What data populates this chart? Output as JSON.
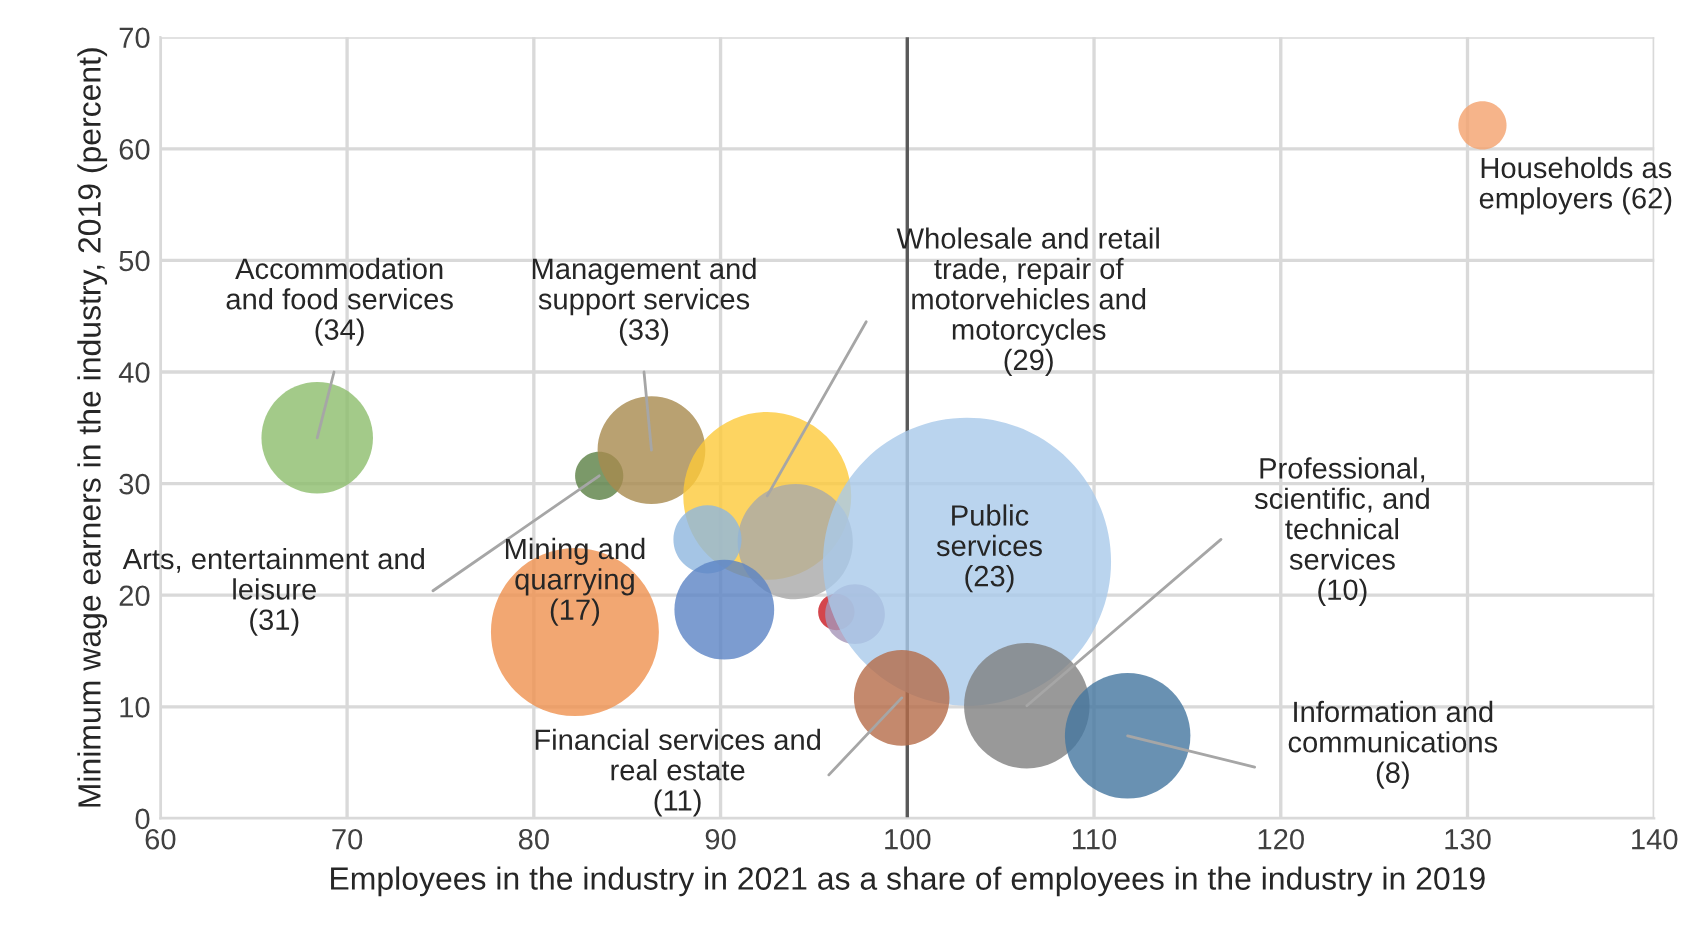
{
  "chart_data": {
    "type": "bubble",
    "xlabel": "Employees in the industry in 2021 as a share of employees in the industry in 2019",
    "ylabel": "Minimum wage earners in the industry, 2019 (percent)",
    "x": [
      68.4,
      83.5,
      86.3,
      92.5,
      94.0,
      89.3,
      90.2,
      82.2,
      96.2,
      97.2,
      103.2,
      99.7,
      106.4,
      111.8,
      130.8
    ],
    "series": [
      {
        "values": [
          34.1,
          30.7,
          33.0,
          28.9,
          24.8,
          25.0,
          18.7,
          16.7,
          18.5,
          18.3,
          23.0,
          10.8,
          10.1,
          7.4,
          62.1
        ],
        "sizes": [
          0.15,
          0.028,
          0.14,
          0.34,
          0.16,
          0.056,
          0.12,
          0.34,
          0.016,
          0.043,
          1,
          0.11,
          0.19,
          0.19,
          0.028
        ],
        "colors": [
          "#8cbd6c",
          "#5a7f43",
          "#a88a4e",
          "#fcc93a",
          "#a9a9a9",
          "#8fb7df",
          "#5b83c4",
          "#ef914f",
          "#c9161f",
          "#a595b8",
          "#a9c9ea",
          "#b56b48",
          "#7f7f7f",
          "#44769f",
          "#f4a16d"
        ]
      }
    ],
    "xlim": [
      60,
      140
    ],
    "xticks": [
      60,
      70,
      80,
      90,
      100,
      110,
      120,
      130,
      140
    ],
    "ylim": [
      0,
      70
    ],
    "yticks": [
      0,
      10,
      20,
      30,
      40,
      50,
      60,
      70
    ],
    "grid": true,
    "ref_lines": [
      {
        "axis": "x",
        "value": 100,
        "color": "#595959"
      }
    ],
    "annotations": [
      {
        "text": "Accommodation\nand food services\n(34)",
        "x": 68.4,
        "y": 34.1
      },
      {
        "text": "Management and\nsupport services\n(33)",
        "x": 86.3,
        "y": 33.0
      },
      {
        "text": "Wholesale and retail\ntrade, repair of\nmotorvehicles and\nmotorcycles\n(29)",
        "x": 92.5,
        "y": 28.9
      },
      {
        "text": "Arts, entertainment and\nleisure\n(31)",
        "x": 83.5,
        "y": 30.7
      },
      {
        "text": "Mining and\nquarrying\n(17)",
        "x": 82.2,
        "y": 16.7
      },
      {
        "text": "Public\nservices\n(23)",
        "x": 103.2,
        "y": 23.0
      },
      {
        "text": "Financial services and\nreal estate\n(11)",
        "x": 99.7,
        "y": 10.8
      },
      {
        "text": "Professional,\nscientific, and\ntechnical\nservices\n(10)",
        "x": 106.4,
        "y": 10.1
      },
      {
        "text": "Information and\ncommunications\n(8)",
        "x": 111.8,
        "y": 7.4
      },
      {
        "text": "Households as\nemployers (62)",
        "x": 130.8,
        "y": 62.1
      }
    ]
  }
}
